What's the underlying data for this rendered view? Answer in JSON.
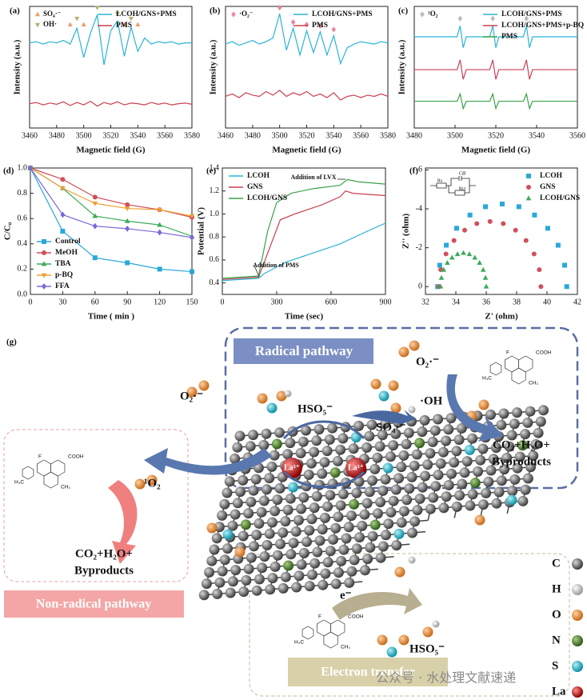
{
  "chart_data": [
    {
      "type": "line",
      "panel_label": "(a)",
      "xlabel": "Magnetic field (G)",
      "ylabel": "Intensity (a.u.)",
      "xlim": [
        3460,
        3580
      ],
      "xticks": [
        3460,
        3480,
        3500,
        3520,
        3540,
        3560,
        3580
      ],
      "ylim": [
        0,
        10
      ],
      "legend": "upper right",
      "x": [
        3460,
        3465,
        3470,
        3475,
        3480,
        3485,
        3490,
        3495,
        3500,
        3505,
        3510,
        3515,
        3520,
        3525,
        3530,
        3535,
        3540,
        3545,
        3550,
        3555,
        3560,
        3565,
        3570,
        3575,
        3580
      ],
      "series": [
        {
          "name": "LCOH/GNS+PMS",
          "color": "#2bb3d6",
          "values": [
            7,
            7.1,
            6.9,
            7.1,
            7,
            7.2,
            6.9,
            8.2,
            5.8,
            7.8,
            9.3,
            5.2,
            8.0,
            8.8,
            5.9,
            8.3,
            6.3,
            7.4,
            6.9,
            7.1,
            7,
            7.1,
            6.9,
            7,
            7
          ]
        },
        {
          "name": "PMS",
          "color": "#c8404f",
          "values": [
            2,
            2.1,
            1.9,
            2.05,
            1.95,
            2.15,
            1.85,
            2.1,
            1.9,
            2.2,
            1.8,
            2.1,
            1.95,
            2.15,
            1.9,
            2.05,
            2,
            1.9,
            2.1,
            1.95,
            2.05,
            1.9,
            2,
            2.05,
            1.95
          ]
        }
      ],
      "peak_markers": [
        {
          "name": "SO₄·⁻",
          "color": "#e8a070",
          "shape": "triangle",
          "x": [
            3490,
            3500,
            3530,
            3540
          ],
          "values": [
            8.5,
            8.5,
            8.5,
            8.5
          ]
        },
        {
          "name": "OH·",
          "color": "#b8b070",
          "shape": "triangle-down",
          "x": [
            3495,
            3510,
            3525,
            3535
          ],
          "values": [
            9.0,
            9.9,
            9.4,
            9.0
          ]
        }
      ]
    },
    {
      "type": "line",
      "panel_label": "(b)",
      "xlabel": "Magnetic field (G)",
      "ylabel": "Intensity (a.u.)",
      "xlim": [
        3460,
        3580
      ],
      "xticks": [
        3460,
        3480,
        3500,
        3520,
        3540,
        3560,
        3580
      ],
      "ylim": [
        0,
        10
      ],
      "legend": "upper right",
      "x": [
        3460,
        3465,
        3470,
        3475,
        3480,
        3485,
        3490,
        3495,
        3500,
        3505,
        3510,
        3515,
        3520,
        3525,
        3530,
        3535,
        3540,
        3545,
        3550,
        3555,
        3560,
        3565,
        3570,
        3575,
        3580
      ],
      "series": [
        {
          "name": "LCOH/GNS+PMS",
          "color": "#2bb3d6",
          "values": [
            6.9,
            7.1,
            6.8,
            7.0,
            7.2,
            6.9,
            7.1,
            7.4,
            9.4,
            6.4,
            8.2,
            6.0,
            8.0,
            6.2,
            7.9,
            6.0,
            7.6,
            5.3,
            6.6,
            6.9,
            7.1,
            7.0,
            6.9,
            7.1,
            7.0
          ]
        },
        {
          "name": "PMS",
          "color": "#c8404f",
          "values": [
            2.6,
            2.8,
            2.5,
            2.9,
            2.7,
            2.6,
            3.0,
            2.7,
            3.1,
            2.6,
            2.9,
            2.7,
            3.0,
            2.6,
            2.8,
            2.5,
            2.9,
            2.3,
            2.6,
            2.7,
            2.5,
            2.7,
            2.6,
            2.8,
            2.6
          ]
        }
      ],
      "peak_markers": [
        {
          "name": "·O₂⁻",
          "color": "#e88a9a",
          "shape": "diamond",
          "x": [
            3500,
            3510,
            3520,
            3530,
            3540
          ],
          "values": [
            9.9,
            8.7,
            8.5,
            8.4,
            8.1
          ]
        }
      ]
    },
    {
      "type": "line",
      "panel_label": "(c)",
      "xlabel": "Magnetic field (G)",
      "ylabel": "Intensity (a.u.)",
      "xlim": [
        3480,
        3560
      ],
      "xticks": [
        3480,
        3500,
        3520,
        3540,
        3560
      ],
      "ylim": [
        0,
        10
      ],
      "legend": "upper right",
      "x": [
        3480,
        3501,
        3502.5,
        3504,
        3505.5,
        3517,
        3518.5,
        3520,
        3521.5,
        3533.5,
        3535,
        3536.5,
        3538,
        3560
      ],
      "series": [
        {
          "name": "LCOH/GNS+PMS",
          "color": "#2bb3d6",
          "values": [
            7.5,
            7.5,
            8.4,
            6.6,
            7.5,
            7.5,
            8.4,
            6.6,
            7.5,
            7.5,
            8.4,
            6.6,
            7.5,
            7.5
          ]
        },
        {
          "name": "LCOH/GNS+PMS+p-BQ",
          "color": "#c8404f",
          "values": [
            4.8,
            4.8,
            5.6,
            4.0,
            4.8,
            4.8,
            5.6,
            4.0,
            4.8,
            4.8,
            5.6,
            4.0,
            4.8,
            4.8
          ]
        },
        {
          "name": "PMS",
          "color": "#3aa14a",
          "values": [
            2.2,
            2.2,
            2.8,
            1.6,
            2.2,
            2.2,
            2.8,
            1.6,
            2.2,
            2.2,
            2.8,
            1.6,
            2.2,
            2.2
          ]
        }
      ],
      "peak_markers": [
        {
          "name": "¹O₂",
          "color": "#bbbbbb",
          "shape": "diamond",
          "x": [
            3502.5,
            3518.5,
            3535
          ],
          "values": [
            9.0,
            9.0,
            9.0
          ]
        }
      ]
    },
    {
      "type": "line",
      "panel_label": "(d)",
      "xlabel": "Time ( min )",
      "ylabel": "C/C₀",
      "xlim": [
        0,
        150
      ],
      "xticks": [
        0,
        30,
        60,
        90,
        120,
        150
      ],
      "ylim": [
        0,
        1.0
      ],
      "yticks": [
        {
          "value": 0,
          "label": "0.0"
        },
        0.2,
        0.4,
        0.6,
        0.8,
        {
          "value": 1.0,
          "label": "1.0"
        }
      ],
      "legend": "lower left",
      "x": [
        0,
        30,
        60,
        90,
        120,
        150
      ],
      "series": [
        {
          "name": "Control",
          "color": "#2aa8d8",
          "marker": "square",
          "values": [
            1.0,
            0.5,
            0.29,
            0.25,
            0.2,
            0.18
          ]
        },
        {
          "name": "MeOH",
          "color": "#d0505a",
          "marker": "circle",
          "values": [
            1.0,
            0.91,
            0.77,
            0.71,
            0.67,
            0.61
          ]
        },
        {
          "name": "TBA",
          "color": "#3cab5a",
          "marker": "triangle",
          "values": [
            1.0,
            0.84,
            0.62,
            0.58,
            0.55,
            0.46
          ]
        },
        {
          "name": "p-BQ",
          "color": "#f0a030",
          "marker": "triangle-down",
          "values": [
            1.0,
            0.84,
            0.72,
            0.68,
            0.67,
            0.62
          ]
        },
        {
          "name": "FFA",
          "color": "#7b68d8",
          "marker": "diamond",
          "values": [
            1.0,
            0.63,
            0.54,
            0.52,
            0.49,
            0.45
          ]
        }
      ]
    },
    {
      "type": "line",
      "panel_label": "(e)",
      "xlabel": "Time (sec)",
      "ylabel": "Potential (V)",
      "xlim": [
        0,
        900
      ],
      "xticks": [
        0,
        300,
        600,
        900
      ],
      "ylim": [
        0.3,
        1.4
      ],
      "yticks": [
        0.4,
        0.6,
        0.8,
        {
          "value": 1.0,
          "label": "1.0"
        },
        1.2,
        1.4
      ],
      "legend": "upper left",
      "annotations": [
        "Addition of LVX",
        "Addition of PMS"
      ],
      "series": [
        {
          "name": "LCOH",
          "color": "#2bb3d6",
          "x": [
            0,
            200,
            230,
            350,
            500,
            650,
            800,
            900
          ],
          "values": [
            0.42,
            0.44,
            0.48,
            0.58,
            0.66,
            0.74,
            0.85,
            0.92
          ]
        },
        {
          "name": "GNS",
          "color": "#c8404f",
          "x": [
            0,
            200,
            260,
            320,
            400,
            550,
            650,
            680,
            720,
            900
          ],
          "values": [
            0.43,
            0.45,
            0.7,
            0.95,
            1.0,
            1.08,
            1.15,
            1.2,
            1.18,
            1.16
          ]
        },
        {
          "name": "LCOH/GNS",
          "color": "#3aa14a",
          "x": [
            0,
            200,
            250,
            300,
            380,
            500,
            650,
            690,
            750,
            900
          ],
          "values": [
            0.44,
            0.46,
            0.85,
            1.1,
            1.18,
            1.22,
            1.25,
            1.3,
            1.28,
            1.26
          ]
        }
      ]
    },
    {
      "type": "scatter",
      "panel_label": "(f)",
      "xlabel": "Z' (ohm)",
      "ylabel": "Z'' (ohm)",
      "xlim": [
        32,
        42
      ],
      "xticks": [
        32,
        34,
        36,
        38,
        40,
        42
      ],
      "ylim": [
        0.4,
        -6.1
      ],
      "yticks": [
        -6,
        -4,
        -2,
        0
      ],
      "legend": "upper right",
      "inset_labels": [
        "Rs",
        "Cdl",
        "Rct"
      ],
      "series": [
        {
          "name": "LCOH",
          "color": "#2aa8d8",
          "marker": "square",
          "x": [
            41.3,
            41.16,
            40.73,
            40.05,
            39.18,
            38.15,
            37.05,
            35.95,
            34.93,
            34.05,
            33.37,
            32.94,
            32.8
          ],
          "values": [
            0,
            -1.1,
            -2.13,
            -3.0,
            -3.68,
            -4.11,
            -4.25,
            -4.11,
            -3.68,
            -3.0,
            -2.13,
            -1.1,
            0
          ]
        },
        {
          "name": "GNS",
          "color": "#d0505a",
          "marker": "circle",
          "x": [
            39.6,
            39.49,
            39.15,
            38.62,
            37.93,
            37.12,
            36.25,
            35.38,
            34.58,
            33.88,
            33.35,
            33.01,
            32.9
          ],
          "values": [
            0,
            -0.87,
            -1.68,
            -2.37,
            -2.9,
            -3.24,
            -3.35,
            -3.24,
            -2.9,
            -2.37,
            -1.68,
            -0.87,
            0
          ]
        },
        {
          "name": "LCOH/GNS",
          "color": "#3cab5a",
          "marker": "triangle",
          "x": [
            36,
            35.95,
            35.8,
            35.56,
            35.25,
            34.89,
            34.5,
            34.11,
            33.75,
            33.44,
            33.2,
            33.05,
            33
          ],
          "values": [
            0,
            -0.45,
            -0.86,
            -1.22,
            -1.49,
            -1.67,
            -1.73,
            -1.67,
            -1.49,
            -1.22,
            -0.86,
            -0.45,
            0
          ]
        }
      ]
    }
  ],
  "schematic": {
    "panel_label": "(g)",
    "radical_pathway": "Radical pathway",
    "non_radical_pathway": "Non-radical pathway",
    "electron_transfer": "Electron transfer",
    "species": {
      "o2_top": "O₂·⁻",
      "o2_left": "O₂·⁻",
      "hso5_top": "HSO₅⁻",
      "so4": "SO₄·⁻",
      "oh": "·OH",
      "singlet_o2": "¹O₂",
      "electron": "e⁻",
      "hso5_bottom": "HSO₅⁻",
      "la_1": "La³⁺",
      "la_2": "La³⁺"
    },
    "products_right": [
      "CO₂+H₂O+",
      "Byproducts"
    ],
    "products_left": [
      "CO₂+H₂O+",
      "Byproducts"
    ],
    "molecules": [
      {
        "f": "F",
        "acid": "COOH",
        "amine_methyl": "H₃C",
        "methyl": "CH₃"
      },
      {
        "f": "F",
        "acid": "COOH",
        "amine_methyl": "H₃C",
        "methyl": "CH₃"
      },
      {
        "f": "F",
        "acid": "COOH",
        "amine_methyl": "H₃C",
        "methyl": "CH₃"
      }
    ],
    "elements": [
      "C",
      "H",
      "O",
      "N",
      "S",
      "La"
    ],
    "watermark": "公众号 · 水处理文献速递"
  }
}
